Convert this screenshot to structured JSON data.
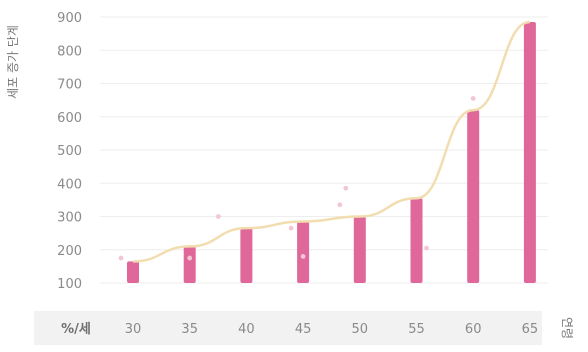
{
  "chart_data": {
    "type": "bar",
    "title": "",
    "ylabel": "세포 증가 단계",
    "xlabel": "연령",
    "x_header": "%/세",
    "categories": [
      "30",
      "35",
      "40",
      "45",
      "50",
      "55",
      "60",
      "65"
    ],
    "y_ticks": [
      100,
      200,
      300,
      400,
      500,
      600,
      700,
      800,
      900
    ],
    "ylim": [
      100,
      900
    ],
    "grid": true,
    "series": [
      {
        "type": "bar",
        "color": "#e0679a",
        "values": [
          165,
          210,
          265,
          285,
          300,
          355,
          620,
          885
        ]
      },
      {
        "type": "line",
        "color": "#f2ddb0",
        "values": [
          165,
          210,
          265,
          285,
          300,
          355,
          620,
          885
        ]
      },
      {
        "type": "scatter",
        "color": "#f3c6d6",
        "points": [
          {
            "x": "30",
            "y": 175
          },
          {
            "x": "35",
            "y": 175
          },
          {
            "x": "40",
            "y": 300
          },
          {
            "x": "45",
            "y": 180
          },
          {
            "x": "45",
            "y": 265
          },
          {
            "x": "50",
            "y": 385
          },
          {
            "x": "50",
            "y": 335
          },
          {
            "x": "55",
            "y": 205
          },
          {
            "x": "60",
            "y": 655
          }
        ]
      }
    ]
  }
}
